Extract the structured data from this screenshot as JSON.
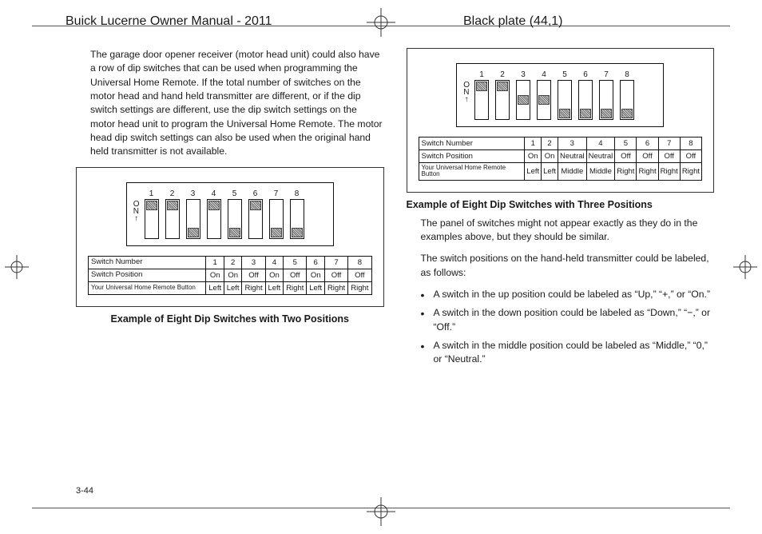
{
  "header": {
    "manual_title": "Buick Lucerne Owner Manual - 2011",
    "plate_text": "Black plate (44,1)"
  },
  "page_number": "3-44",
  "left_column": {
    "intro_para": "The garage door opener receiver (motor head unit) could also have a row of dip switches that can be used when programming the Universal Home Remote. If the total number of switches on the motor head and hand held transmitter are different, or if the dip switch settings are different, use the dip switch settings on the motor head unit to program the Universal Home Remote. The motor head dip switch settings can also be used when the original hand held transmitter is not available.",
    "figure": {
      "on_label": "O\nN",
      "switch_numbers": [
        "1",
        "2",
        "3",
        "4",
        "5",
        "6",
        "7",
        "8"
      ],
      "positions_visual": [
        "on",
        "on",
        "off",
        "on",
        "off",
        "on",
        "off",
        "off"
      ],
      "table": {
        "row1_label": "Switch Number",
        "row1": [
          "1",
          "2",
          "3",
          "4",
          "5",
          "6",
          "7",
          "8"
        ],
        "row2_label": "Switch Position",
        "row2": [
          "On",
          "On",
          "Off",
          "On",
          "Off",
          "On",
          "Off",
          "Off"
        ],
        "row3_label": "Your Universal Home Remote Button",
        "row3": [
          "Left",
          "Left",
          "Right",
          "Left",
          "Right",
          "Left",
          "Right",
          "Right"
        ]
      }
    },
    "caption": "Example of Eight Dip Switches with Two Positions"
  },
  "right_column": {
    "figure": {
      "on_label": "O\nN",
      "switch_numbers": [
        "1",
        "2",
        "3",
        "4",
        "5",
        "6",
        "7",
        "8"
      ],
      "positions_visual": [
        "on",
        "on",
        "mid",
        "mid",
        "off",
        "off",
        "off",
        "off"
      ],
      "table": {
        "row1_label": "Switch Number",
        "row1": [
          "1",
          "2",
          "3",
          "4",
          "5",
          "6",
          "7",
          "8"
        ],
        "row2_label": "Switch Position",
        "row2": [
          "On",
          "On",
          "Neutral",
          "Neutral",
          "Off",
          "Off",
          "Off",
          "Off"
        ],
        "row3_label": "Your Universal Home Remote Button",
        "row3": [
          "Left",
          "Left",
          "Middle",
          "Middle",
          "Right",
          "Right",
          "Right",
          "Right"
        ]
      }
    },
    "caption": "Example of Eight Dip Switches with Three Positions",
    "para1": "The panel of switches might not appear exactly as they do in the examples above, but they should be similar.",
    "para2": "The switch positions on the hand-held transmitter could be labeled, as follows:",
    "bullets": [
      "A switch in the up position could be labeled as “Up,” “+,” or “On.”",
      "A switch in the down position could be labeled as “Down,” “−,” or “Off.”",
      "A switch in the middle position could be labeled as “Middle,” “0,” or “Neutral.”"
    ]
  },
  "colors": {
    "text": "#1a1a1a",
    "border": "#333333",
    "rule": "#555555",
    "knob_hatch_dark": "#666666",
    "knob_hatch_light": "#dddddd"
  }
}
